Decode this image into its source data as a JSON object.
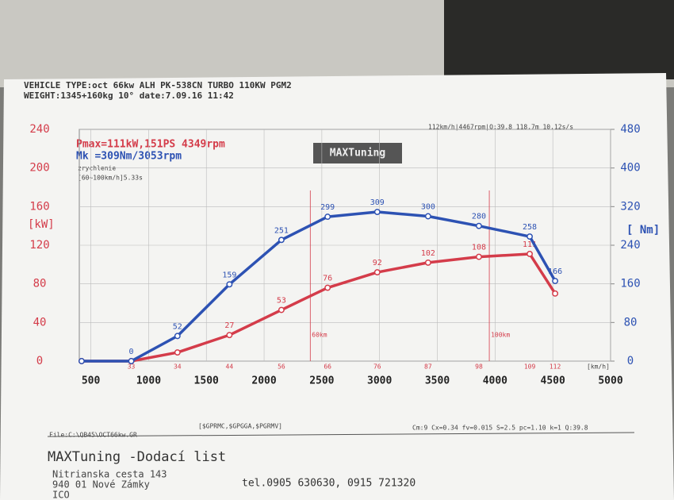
{
  "header": {
    "line1": "VEHICLE TYPE:oct 66kw ALH PK-538CN TURBO 110KW PGM2",
    "line2": "WEIGHT:1345+160kg 10° date:7.09.16 11:42"
  },
  "chart_data": {
    "type": "line",
    "power_title": "Pmax=111kW,151PS 4349rpm",
    "torque_title": "Mk  =309Nm/3053rpm",
    "accel_label": "zrychlenie",
    "accel_value": "[60~100km/h]5.33s",
    "top_info": "112km/h|4467rpm|Q:39.8 118.7m 10.12s/s",
    "logo": "MAXTuning",
    "y_label": "[kW]",
    "y2_label": "[ Nm]",
    "speed_unit": "[km/h]",
    "markers": [
      {
        "x": 2400,
        "label": "60km"
      },
      {
        "x": 3950,
        "label": "100km"
      }
    ],
    "x": [
      420,
      850,
      1250,
      1700,
      2150,
      2550,
      2980,
      3420,
      3860,
      4300,
      4520
    ],
    "speed": [
      null,
      33,
      34,
      44,
      56,
      66,
      76,
      87,
      98,
      109,
      112
    ],
    "series": [
      {
        "name": "Power",
        "color": "#d43c4a",
        "values": [
          0,
          0,
          9,
          27,
          53,
          76,
          92,
          102,
          108,
          111,
          70
        ]
      },
      {
        "name": "Torque",
        "color": "#2d52b3",
        "axis": "y2",
        "values": [
          0,
          0,
          52,
          159,
          251,
          299,
          309,
          300,
          280,
          258,
          166
        ]
      }
    ],
    "xlim": [
      400,
      5000
    ],
    "xticks": [
      500,
      1000,
      1500,
      2000,
      2500,
      3000,
      3500,
      4000,
      4500,
      5000
    ],
    "ylim": [
      0,
      240
    ],
    "yticks": [
      0,
      40,
      80,
      120,
      160,
      200,
      240
    ],
    "y2lim": [
      0,
      480
    ],
    "y2ticks": [
      0,
      80,
      160,
      240,
      320,
      400,
      480
    ],
    "grid": true
  },
  "footer": {
    "file": "File:C:\\QB45\\OCT66kw.GR",
    "gps": "[$GPRMC,$GPGGA,$PGRMV]",
    "params": "Cm:9 Cx=0.34 fv=0.015 S=2.5 pc=1.10 k=1 Q:39.8",
    "company": "MAXTuning -Dodací list",
    "street": "Nitrianska cesta 143",
    "city": "940 01 Nové Zámky",
    "ico": "ICO",
    "phone": "tel.0905 630630, 0915 721320"
  }
}
